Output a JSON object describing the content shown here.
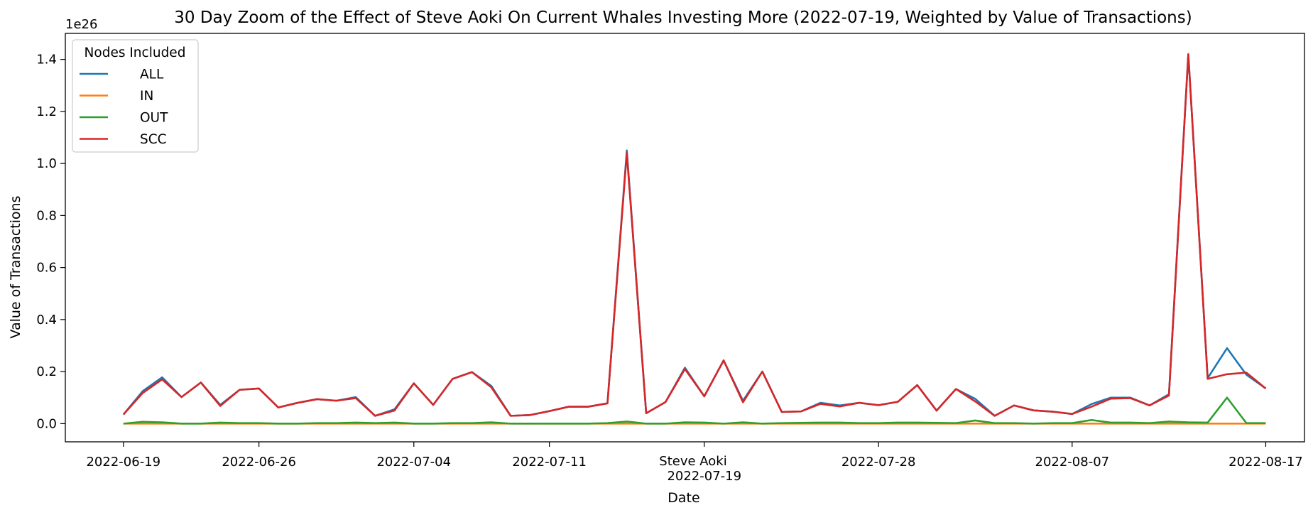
{
  "chart_data": {
    "type": "line",
    "title": "30 Day Zoom of the Effect of Steve Aoki On Current Whales Investing More (2022-07-19, Weighted by Value of Transactions)",
    "xlabel": "Date",
    "ylabel": "Value of Transactions",
    "y_offset_text": "1e26",
    "y_scale_exponent": 26,
    "ylim": [
      -0.07,
      1.5
    ],
    "xlim": [
      "2022-06-16",
      "2022-08-19"
    ],
    "grid": false,
    "legend": {
      "title": "Nodes Included",
      "placement": "top-left"
    },
    "event": {
      "label": "Steve Aoki",
      "date": "2022-07-19"
    },
    "x_ticks": [
      {
        "date": "2022-06-19",
        "label": "2022-06-19"
      },
      {
        "date": "2022-06-26",
        "label": "2022-06-26"
      },
      {
        "date": "2022-07-04",
        "label": "2022-07-04"
      },
      {
        "date": "2022-07-11",
        "label": "2022-07-11"
      },
      {
        "date": "2022-07-19",
        "label": "2022-07-19"
      },
      {
        "date": "2022-07-28",
        "label": "2022-07-28"
      },
      {
        "date": "2022-08-07",
        "label": "2022-08-07"
      },
      {
        "date": "2022-08-17",
        "label": "2022-08-17"
      }
    ],
    "y_ticks": [
      0.0,
      0.2,
      0.4,
      0.6,
      0.8,
      1.0,
      1.2,
      1.4
    ],
    "y_tick_labels": [
      "0.0",
      "0.2",
      "0.4",
      "0.6",
      "0.8",
      "1.0",
      "1.2",
      "1.4"
    ],
    "x": [
      "2022-06-19",
      "2022-06-20",
      "2022-06-21",
      "2022-06-22",
      "2022-06-23",
      "2022-06-24",
      "2022-06-25",
      "2022-06-26",
      "2022-06-27",
      "2022-06-28",
      "2022-06-29",
      "2022-06-30",
      "2022-07-01",
      "2022-07-02",
      "2022-07-03",
      "2022-07-04",
      "2022-07-05",
      "2022-07-06",
      "2022-07-07",
      "2022-07-08",
      "2022-07-09",
      "2022-07-10",
      "2022-07-11",
      "2022-07-12",
      "2022-07-13",
      "2022-07-14",
      "2022-07-15",
      "2022-07-16",
      "2022-07-17",
      "2022-07-18",
      "2022-07-19",
      "2022-07-20",
      "2022-07-21",
      "2022-07-22",
      "2022-07-23",
      "2022-07-24",
      "2022-07-25",
      "2022-07-26",
      "2022-07-27",
      "2022-07-28",
      "2022-07-29",
      "2022-07-30",
      "2022-07-31",
      "2022-08-01",
      "2022-08-02",
      "2022-08-03",
      "2022-08-04",
      "2022-08-05",
      "2022-08-06",
      "2022-08-07",
      "2022-08-08",
      "2022-08-09",
      "2022-08-10",
      "2022-08-11",
      "2022-08-12",
      "2022-08-13",
      "2022-08-14",
      "2022-08-15",
      "2022-08-16",
      "2022-08-17"
    ],
    "series": [
      {
        "name": "ALL",
        "color": "#1f77b4",
        "values": [
          0.035,
          0.125,
          0.178,
          0.102,
          0.158,
          0.072,
          0.13,
          0.135,
          0.062,
          0.08,
          0.094,
          0.088,
          0.102,
          0.03,
          0.055,
          0.155,
          0.072,
          0.172,
          0.198,
          0.145,
          0.03,
          0.033,
          0.048,
          0.065,
          0.065,
          0.078,
          1.05,
          0.04,
          0.083,
          0.215,
          0.105,
          0.243,
          0.088,
          0.2,
          0.045,
          0.047,
          0.08,
          0.07,
          0.08,
          0.071,
          0.084,
          0.148,
          0.05,
          0.133,
          0.095,
          0.03,
          0.07,
          0.051,
          0.046,
          0.037,
          0.075,
          0.1,
          0.1,
          0.07,
          0.113,
          1.42,
          0.175,
          0.29,
          0.188,
          0.135
        ]
      },
      {
        "name": "IN",
        "color": "#ff7f0e",
        "values": [
          0.0,
          0.0,
          0.0,
          0.0,
          0.0,
          0.0,
          0.0,
          0.0,
          0.0,
          0.0,
          0.0,
          0.0,
          0.0,
          0.0,
          0.0,
          0.0,
          0.0,
          0.0,
          0.0,
          0.0,
          0.0,
          0.0,
          0.0,
          0.0,
          0.0,
          0.0,
          0.0,
          0.0,
          0.0,
          0.0,
          0.0,
          0.0,
          0.0,
          0.0,
          0.0,
          0.0,
          0.0,
          0.0,
          0.0,
          0.0,
          0.0,
          0.0,
          0.0,
          0.0,
          0.0,
          0.0,
          0.0,
          0.0,
          0.0,
          0.0,
          0.0,
          0.0,
          0.0,
          0.0,
          0.0,
          0.0,
          0.0,
          0.0,
          0.0,
          0.0
        ]
      },
      {
        "name": "OUT",
        "color": "#2ca02c",
        "values": [
          0.0,
          0.007,
          0.005,
          0.0,
          0.0,
          0.004,
          0.002,
          0.002,
          0.0,
          0.0,
          0.002,
          0.002,
          0.004,
          0.002,
          0.004,
          0.0,
          0.0,
          0.002,
          0.002,
          0.005,
          0.0,
          0.0,
          0.0,
          0.0,
          0.0,
          0.002,
          0.008,
          0.0,
          0.0,
          0.005,
          0.004,
          0.0,
          0.005,
          0.0,
          0.002,
          0.003,
          0.004,
          0.004,
          0.002,
          0.002,
          0.004,
          0.004,
          0.003,
          0.002,
          0.012,
          0.002,
          0.002,
          0.0,
          0.002,
          0.002,
          0.014,
          0.004,
          0.004,
          0.002,
          0.008,
          0.005,
          0.004,
          0.1,
          0.002,
          0.002
        ]
      },
      {
        "name": "SCC",
        "color": "#d62728",
        "values": [
          0.035,
          0.118,
          0.17,
          0.102,
          0.158,
          0.068,
          0.13,
          0.135,
          0.062,
          0.08,
          0.094,
          0.088,
          0.098,
          0.03,
          0.05,
          0.155,
          0.072,
          0.172,
          0.198,
          0.14,
          0.03,
          0.033,
          0.048,
          0.065,
          0.065,
          0.078,
          1.04,
          0.04,
          0.083,
          0.21,
          0.105,
          0.243,
          0.082,
          0.2,
          0.045,
          0.047,
          0.076,
          0.066,
          0.08,
          0.071,
          0.084,
          0.148,
          0.05,
          0.133,
          0.085,
          0.03,
          0.07,
          0.051,
          0.046,
          0.037,
          0.065,
          0.096,
          0.098,
          0.07,
          0.108,
          1.42,
          0.172,
          0.19,
          0.196,
          0.135
        ]
      }
    ]
  }
}
